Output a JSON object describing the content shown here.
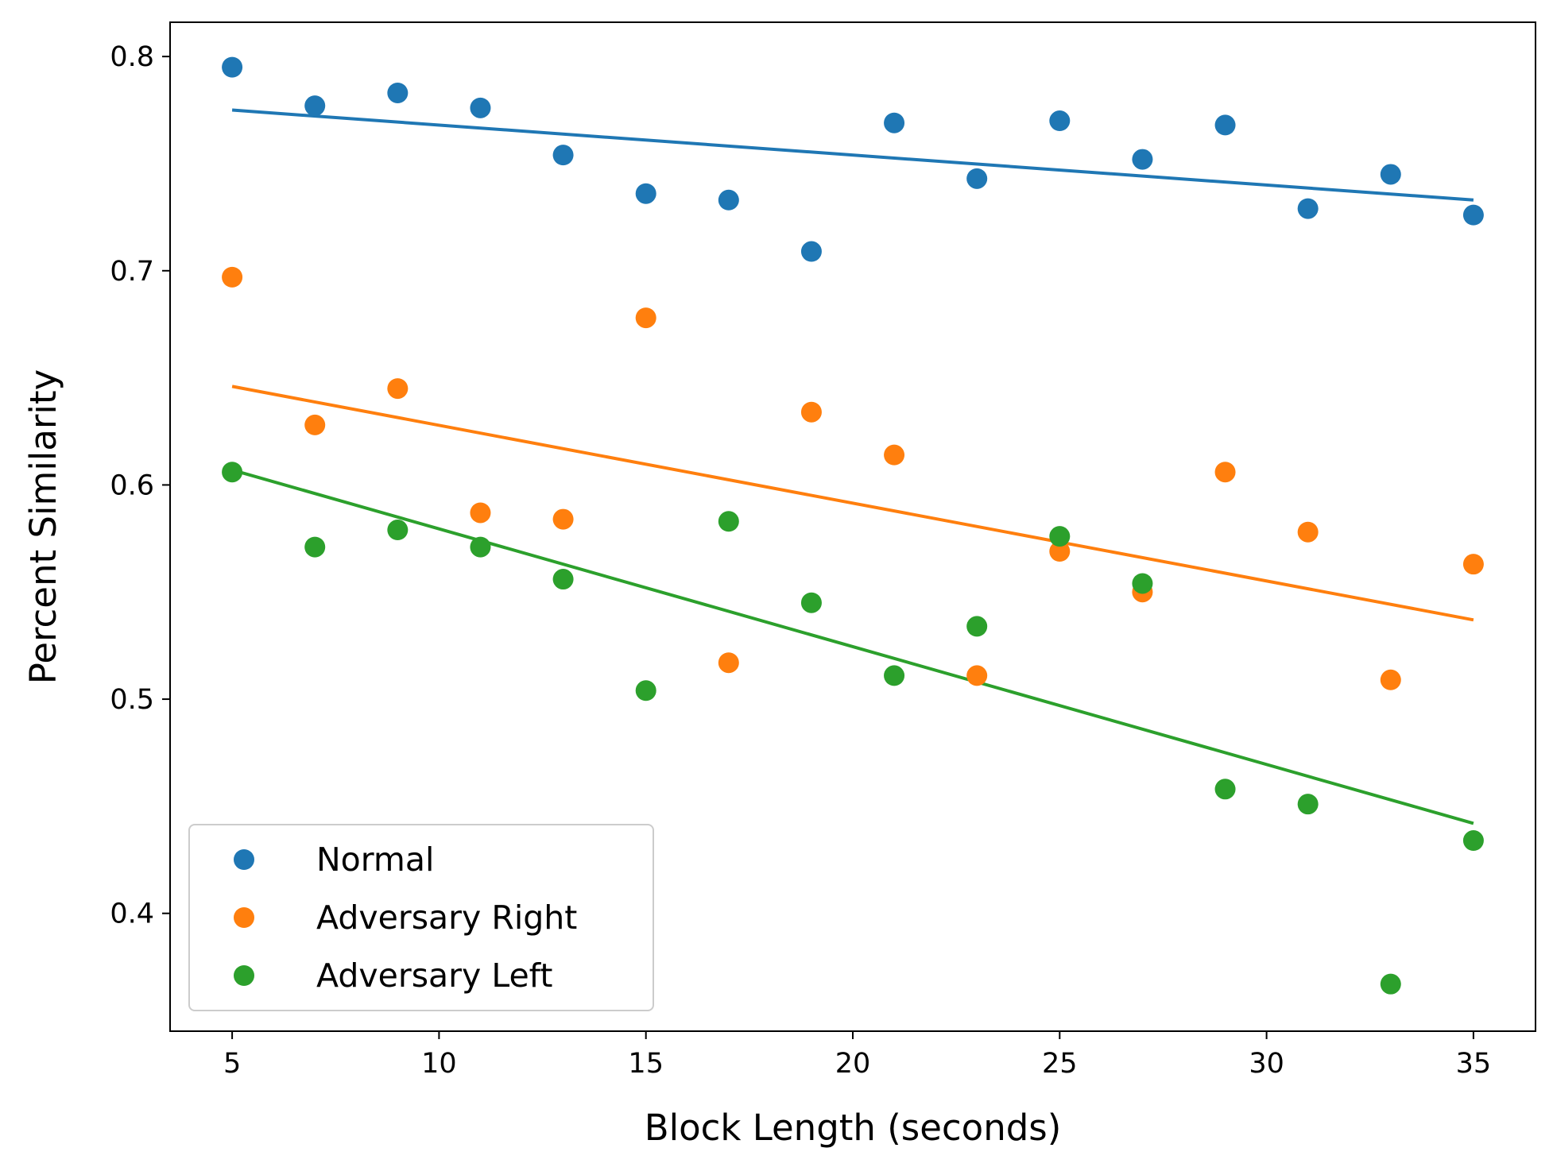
{
  "chart_data": {
    "type": "scatter",
    "title": "",
    "xlabel": "Block Length (seconds)",
    "ylabel": "Percent Similarity",
    "xlim": [
      3.5,
      36.5
    ],
    "ylim": [
      0.345,
      0.816
    ],
    "xticks": [
      5,
      10,
      15,
      20,
      25,
      30,
      35
    ],
    "yticks": [
      0.4,
      0.5,
      0.6,
      0.7,
      0.8
    ],
    "xtick_labels": [
      "5",
      "10",
      "15",
      "20",
      "25",
      "30",
      "35"
    ],
    "ytick_labels": [
      "0.4",
      "0.5",
      "0.6",
      "0.7",
      "0.8"
    ],
    "grid": false,
    "legend_position": "lower-left",
    "x": [
      5,
      7,
      9,
      11,
      13,
      15,
      17,
      19,
      21,
      23,
      25,
      27,
      29,
      31,
      33,
      35
    ],
    "series": [
      {
        "name": "Normal",
        "color": "#1f77b4",
        "values": [
          0.795,
          0.777,
          0.783,
          0.776,
          0.754,
          0.736,
          0.733,
          0.709,
          0.769,
          0.743,
          0.77,
          0.752,
          0.768,
          0.729,
          0.745,
          0.726
        ],
        "fit_line": [
          [
            5,
            0.775
          ],
          [
            35,
            0.733
          ]
        ]
      },
      {
        "name": "Adversary Right",
        "color": "#ff7f0e",
        "values": [
          0.697,
          0.628,
          0.645,
          0.587,
          0.584,
          0.678,
          0.517,
          0.634,
          0.614,
          0.511,
          0.569,
          0.55,
          0.606,
          0.578,
          0.509,
          0.563
        ],
        "fit_line": [
          [
            5,
            0.646
          ],
          [
            35,
            0.537
          ]
        ]
      },
      {
        "name": "Adversary Left",
        "color": "#2ca02c",
        "values": [
          0.606,
          0.571,
          0.579,
          0.571,
          0.556,
          0.504,
          0.583,
          0.545,
          0.511,
          0.534,
          0.576,
          0.554,
          0.458,
          0.451,
          0.367,
          0.434
        ],
        "fit_line": [
          [
            5,
            0.607
          ],
          [
            35,
            0.442
          ]
        ]
      }
    ]
  }
}
